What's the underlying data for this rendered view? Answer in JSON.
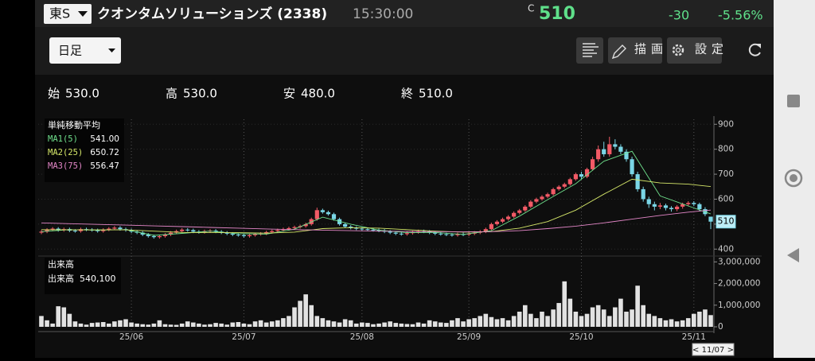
{
  "header": {
    "market": "東S",
    "name": "クオンタムソリューションズ (2338)",
    "time": "15:30:00",
    "price_flag": "C",
    "price": "510",
    "change": "-30",
    "change_pct": "-5.56%"
  },
  "toolbar": {
    "period": "日足",
    "draw": "描画",
    "settings": "設定"
  },
  "ohlc": [
    {
      "label": "始",
      "value": "530.0"
    },
    {
      "label": "高",
      "value": "530.0"
    },
    {
      "label": "安",
      "value": "480.0"
    },
    {
      "label": "終",
      "value": "510.0"
    }
  ],
  "chart_data": [
    {
      "type": "candlestick",
      "legend_title": "単純移動平均",
      "up_color": "#f25a66",
      "down_color": "#7ad6e6",
      "open": [
        466,
        470,
        478,
        482,
        476,
        480,
        474,
        472,
        480,
        478,
        476,
        472,
        478,
        482,
        486,
        480,
        476,
        470,
        466,
        458,
        452,
        448,
        452,
        458,
        466,
        472,
        478,
        476,
        470,
        468,
        472,
        474,
        470,
        466,
        462,
        458,
        456,
        452,
        456,
        460,
        462,
        468,
        472,
        476,
        480,
        484,
        488,
        492,
        500,
        520,
        556,
        548,
        540,
        520,
        500,
        490,
        485,
        482,
        480,
        478,
        476,
        474,
        470,
        466,
        462,
        460,
        464,
        468,
        472,
        470,
        466,
        462,
        460,
        458,
        456,
        460,
        458,
        462,
        466,
        470,
        480,
        500,
        510,
        520,
        530,
        545,
        555,
        570,
        590,
        600,
        610,
        620,
        640,
        650,
        660,
        680,
        700,
        690,
        720,
        760,
        800,
        780,
        820,
        810,
        790,
        760,
        700,
        640,
        600,
        580,
        570,
        575,
        565,
        560,
        570,
        580,
        585,
        580,
        560,
        530
      ],
      "high": [
        476,
        484,
        488,
        488,
        486,
        486,
        480,
        486,
        486,
        484,
        482,
        484,
        488,
        492,
        492,
        486,
        482,
        476,
        472,
        464,
        458,
        458,
        464,
        472,
        478,
        484,
        484,
        482,
        476,
        478,
        480,
        480,
        476,
        472,
        468,
        464,
        462,
        462,
        466,
        468,
        474,
        478,
        482,
        486,
        490,
        494,
        498,
        506,
        526,
        566,
        562,
        554,
        546,
        526,
        506,
        496,
        491,
        488,
        486,
        484,
        482,
        480,
        476,
        472,
        468,
        470,
        474,
        478,
        478,
        476,
        472,
        468,
        466,
        464,
        466,
        466,
        468,
        472,
        476,
        486,
        506,
        516,
        526,
        536,
        551,
        561,
        576,
        596,
        606,
        616,
        626,
        646,
        656,
        666,
        686,
        706,
        710,
        726,
        770,
        815,
        830,
        850,
        840,
        820,
        800,
        770,
        710,
        650,
        610,
        590,
        585,
        582,
        572,
        576,
        586,
        592,
        592,
        586,
        568,
        530
      ],
      "low": [
        460,
        464,
        472,
        470,
        470,
        468,
        466,
        466,
        472,
        470,
        466,
        466,
        472,
        476,
        474,
        470,
        464,
        460,
        452,
        446,
        442,
        442,
        446,
        452,
        460,
        466,
        470,
        464,
        462,
        462,
        466,
        464,
        460,
        456,
        452,
        450,
        446,
        446,
        450,
        454,
        456,
        462,
        466,
        470,
        474,
        478,
        482,
        486,
        494,
        514,
        542,
        534,
        514,
        494,
        484,
        479,
        476,
        474,
        472,
        470,
        468,
        464,
        460,
        456,
        454,
        454,
        458,
        462,
        464,
        460,
        456,
        454,
        452,
        450,
        450,
        452,
        452,
        456,
        460,
        464,
        474,
        494,
        504,
        514,
        524,
        539,
        549,
        564,
        584,
        594,
        604,
        614,
        634,
        644,
        654,
        674,
        680,
        684,
        714,
        750,
        770,
        770,
        800,
        780,
        750,
        690,
        630,
        590,
        565,
        555,
        560,
        555,
        550,
        552,
        562,
        572,
        572,
        552,
        532,
        480
      ],
      "close": [
        470,
        478,
        482,
        476,
        480,
        474,
        472,
        480,
        478,
        476,
        472,
        478,
        482,
        486,
        480,
        476,
        470,
        466,
        458,
        452,
        448,
        452,
        458,
        466,
        472,
        478,
        476,
        470,
        468,
        472,
        474,
        470,
        466,
        462,
        458,
        456,
        452,
        456,
        460,
        462,
        468,
        472,
        476,
        480,
        484,
        488,
        492,
        500,
        520,
        556,
        548,
        540,
        520,
        500,
        490,
        485,
        482,
        480,
        478,
        476,
        474,
        470,
        466,
        462,
        460,
        464,
        468,
        472,
        470,
        466,
        462,
        460,
        458,
        456,
        460,
        458,
        462,
        466,
        470,
        480,
        500,
        510,
        520,
        530,
        545,
        555,
        570,
        590,
        600,
        610,
        620,
        640,
        650,
        660,
        680,
        700,
        690,
        720,
        760,
        800,
        780,
        820,
        810,
        790,
        760,
        700,
        640,
        600,
        580,
        570,
        575,
        565,
        560,
        570,
        580,
        585,
        580,
        560,
        540,
        510
      ],
      "series": [
        {
          "name": "MA1(5)",
          "color": "#6fe08c",
          "legend_value": "541.00",
          "x": [
            0,
            5,
            10,
            15,
            20,
            25,
            30,
            35,
            40,
            45,
            50,
            55,
            60,
            65,
            70,
            75,
            80,
            85,
            90,
            95,
            100,
            105,
            110,
            115,
            119
          ],
          "values": [
            470,
            478,
            476,
            478,
            455,
            463,
            472,
            462,
            460,
            480,
            528,
            500,
            476,
            466,
            467,
            459,
            474,
            532,
            598,
            662,
            752,
            792,
            613,
            573,
            541.0
          ]
        },
        {
          "name": "MA2(25)",
          "color": "#d6e86a",
          "legend_value": "650.72",
          "x": [
            0,
            5,
            10,
            15,
            20,
            25,
            30,
            35,
            40,
            45,
            50,
            55,
            60,
            65,
            70,
            75,
            80,
            85,
            90,
            95,
            100,
            105,
            110,
            115,
            119
          ],
          "values": [
            478,
            477,
            477,
            477,
            472,
            467,
            466,
            466,
            464,
            468,
            482,
            486,
            484,
            478,
            472,
            468,
            470,
            484,
            510,
            556,
            620,
            680,
            665,
            660,
            650.72
          ]
        },
        {
          "name": "MA3(75)",
          "color": "#e487c8",
          "legend_value": "556.47",
          "x": [
            0,
            5,
            10,
            15,
            20,
            25,
            30,
            35,
            40,
            45,
            50,
            55,
            60,
            65,
            70,
            75,
            80,
            85,
            90,
            95,
            100,
            105,
            110,
            115,
            119
          ],
          "values": [
            505,
            502,
            499,
            496,
            493,
            490,
            487,
            484,
            481,
            478,
            476,
            474,
            472,
            471,
            470,
            469,
            470,
            474,
            482,
            492,
            505,
            520,
            535,
            548,
            556.47
          ]
        }
      ],
      "ylim": [
        385,
        920
      ],
      "yticks": [
        400,
        500,
        600,
        700,
        800,
        900
      ],
      "grid": true
    },
    {
      "type": "bar",
      "legend_title": "出来高",
      "legend_label": "出来高",
      "legend_value": "540,100",
      "color": "#e2e2e2",
      "categories": [
        null,
        null,
        null,
        null,
        null,
        null,
        null,
        null,
        null,
        null,
        null,
        null,
        null,
        null,
        null,
        null,
        "25/06",
        null,
        null,
        null,
        null,
        null,
        null,
        null,
        null,
        null,
        null,
        null,
        null,
        null,
        null,
        null,
        null,
        null,
        null,
        null,
        "25/07",
        null,
        null,
        null,
        null,
        null,
        null,
        null,
        null,
        null,
        null,
        null,
        null,
        null,
        null,
        null,
        null,
        null,
        null,
        null,
        null,
        "25/08",
        null,
        null,
        null,
        null,
        null,
        null,
        null,
        null,
        null,
        null,
        null,
        null,
        null,
        null,
        null,
        null,
        null,
        null,
        "25/09",
        null,
        null,
        null,
        null,
        null,
        null,
        null,
        null,
        null,
        null,
        null,
        null,
        null,
        null,
        null,
        null,
        null,
        null,
        null,
        "25/10",
        null,
        null,
        null,
        null,
        null,
        null,
        null,
        null,
        null,
        null,
        null,
        null,
        null,
        null,
        null,
        null,
        null,
        null,
        null,
        "25/11",
        null,
        null,
        null
      ],
      "values": [
        500000,
        300000,
        150000,
        950000,
        900000,
        600000,
        250000,
        150000,
        100000,
        180000,
        200000,
        220000,
        150000,
        250000,
        300000,
        350000,
        200000,
        150000,
        120000,
        100000,
        150000,
        300000,
        120000,
        100000,
        90000,
        150000,
        250000,
        200000,
        150000,
        100000,
        120000,
        180000,
        150000,
        100000,
        200000,
        220000,
        150000,
        120000,
        250000,
        300000,
        200000,
        250000,
        300000,
        400000,
        500000,
        900000,
        1200000,
        1500000,
        1000000,
        500000,
        400000,
        300000,
        250000,
        200000,
        350000,
        300000,
        150000,
        200000,
        180000,
        120000,
        150000,
        200000,
        250000,
        180000,
        150000,
        130000,
        120000,
        200000,
        150000,
        300000,
        250000,
        200000,
        180000,
        300000,
        400000,
        250000,
        350000,
        400000,
        500000,
        600000,
        450000,
        350000,
        400000,
        300000,
        500000,
        700000,
        1000000,
        600000,
        400000,
        700000,
        500000,
        800000,
        1100000,
        2100000,
        1300000,
        700000,
        500000,
        600000,
        900000,
        1000000,
        800000,
        500000,
        900000,
        1300000,
        700000,
        800000,
        1900000,
        1000000,
        600000,
        500000,
        400000,
        300000,
        350000,
        250000,
        300000,
        400000,
        600000,
        700000,
        800000,
        540100
      ],
      "ylim": [
        0,
        3050000
      ],
      "yticks": [
        {
          "value": 0,
          "label": "0"
        },
        {
          "value": 1000000,
          "label": "1,000,000"
        },
        {
          "value": 2000000,
          "label": "2,000,000"
        },
        {
          "value": 3000000,
          "label": "3,000,000"
        }
      ]
    }
  ],
  "footer": {
    "cursor": "< 11/07 >"
  }
}
